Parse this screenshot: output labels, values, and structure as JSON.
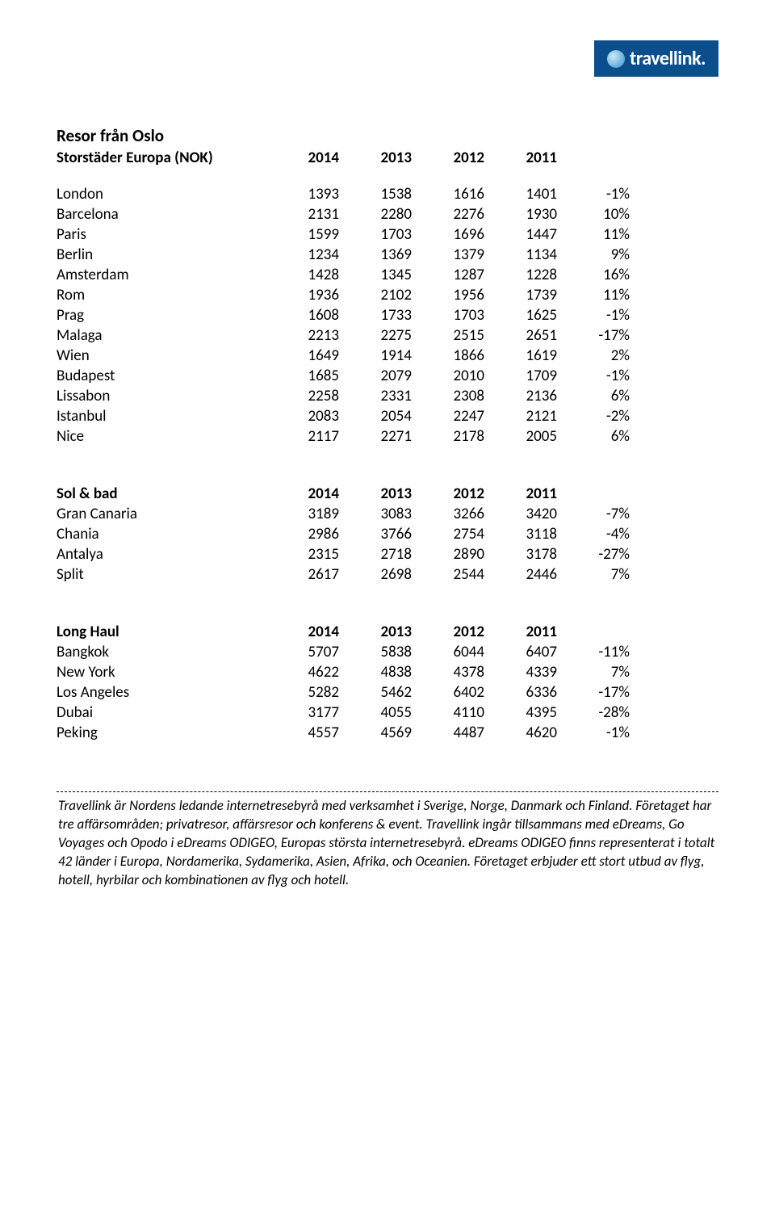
{
  "logo": {
    "text": "travellink."
  },
  "page_title": "Resor från Oslo",
  "tables": [
    {
      "header_label": "Storstäder Europa (NOK)",
      "year_cols": [
        "2014",
        "2013",
        "2012",
        "2011"
      ],
      "rows": [
        {
          "label": "London",
          "vals": [
            "1393",
            "1538",
            "1616",
            "1401"
          ],
          "pct": "-1%"
        },
        {
          "label": "Barcelona",
          "vals": [
            "2131",
            "2280",
            "2276",
            "1930"
          ],
          "pct": "10%"
        },
        {
          "label": "Paris",
          "vals": [
            "1599",
            "1703",
            "1696",
            "1447"
          ],
          "pct": "11%"
        },
        {
          "label": "Berlin",
          "vals": [
            "1234",
            "1369",
            "1379",
            "1134"
          ],
          "pct": "9%"
        },
        {
          "label": "Amsterdam",
          "vals": [
            "1428",
            "1345",
            "1287",
            "1228"
          ],
          "pct": "16%"
        },
        {
          "label": "Rom",
          "vals": [
            "1936",
            "2102",
            "1956",
            "1739"
          ],
          "pct": "11%"
        },
        {
          "label": "Prag",
          "vals": [
            "1608",
            "1733",
            "1703",
            "1625"
          ],
          "pct": "-1%"
        },
        {
          "label": "Malaga",
          "vals": [
            "2213",
            "2275",
            "2515",
            "2651"
          ],
          "pct": "-17%"
        },
        {
          "label": "Wien",
          "vals": [
            "1649",
            "1914",
            "1866",
            "1619"
          ],
          "pct": "2%"
        },
        {
          "label": "Budapest",
          "vals": [
            "1685",
            "2079",
            "2010",
            "1709"
          ],
          "pct": "-1%"
        },
        {
          "label": "Lissabon",
          "vals": [
            "2258",
            "2331",
            "2308",
            "2136"
          ],
          "pct": "6%"
        },
        {
          "label": "Istanbul",
          "vals": [
            "2083",
            "2054",
            "2247",
            "2121"
          ],
          "pct": "-2%"
        },
        {
          "label": "Nice",
          "vals": [
            "2117",
            "2271",
            "2178",
            "2005"
          ],
          "pct": "6%"
        }
      ]
    },
    {
      "header_label": "Sol & bad",
      "year_cols": [
        "2014",
        "2013",
        "2012",
        "2011"
      ],
      "rows": [
        {
          "label": "Gran Canaria",
          "vals": [
            "3189",
            "3083",
            "3266",
            "3420"
          ],
          "pct": "-7%"
        },
        {
          "label": "Chania",
          "vals": [
            "2986",
            "3766",
            "2754",
            "3118"
          ],
          "pct": "-4%"
        },
        {
          "label": "Antalya",
          "vals": [
            "2315",
            "2718",
            "2890",
            "3178"
          ],
          "pct": "-27%"
        },
        {
          "label": "Split",
          "vals": [
            "2617",
            "2698",
            "2544",
            "2446"
          ],
          "pct": "7%"
        }
      ]
    },
    {
      "header_label": "Long Haul",
      "year_cols": [
        "2014",
        "2013",
        "2012",
        "2011"
      ],
      "rows": [
        {
          "label": "Bangkok",
          "vals": [
            "5707",
            "5838",
            "6044",
            "6407"
          ],
          "pct": "-11%"
        },
        {
          "label": "New York",
          "vals": [
            "4622",
            "4838",
            "4378",
            "4339"
          ],
          "pct": "7%"
        },
        {
          "label": "Los Angeles",
          "vals": [
            "5282",
            "5462",
            "6402",
            "6336"
          ],
          "pct": "-17%"
        },
        {
          "label": "Dubai",
          "vals": [
            "3177",
            "4055",
            "4110",
            "4395"
          ],
          "pct": "-28%"
        },
        {
          "label": "Peking",
          "vals": [
            "4557",
            "4569",
            "4487",
            "4620"
          ],
          "pct": "-1%"
        }
      ]
    }
  ],
  "footer": "Travellink är Nordens ledande internetresebyrå med verksamhet i Sverige, Norge, Danmark och Finland. Företaget har tre affärsområden; privatresor, affärsresor och konferens & event. Travellink ingår tillsammans med eDreams, Go Voyages och Opodo i eDreams ODIGEO, Europas största internetresebyrå. eDreams ODIGEO finns representerat i totalt 42 länder i Europa, Nordamerika, Sydamerika, Asien, Afrika, och Oceanien. Företaget erbjuder ett stort utbud av flyg, hotell, hyrbilar och kombinationen av flyg och hotell."
}
